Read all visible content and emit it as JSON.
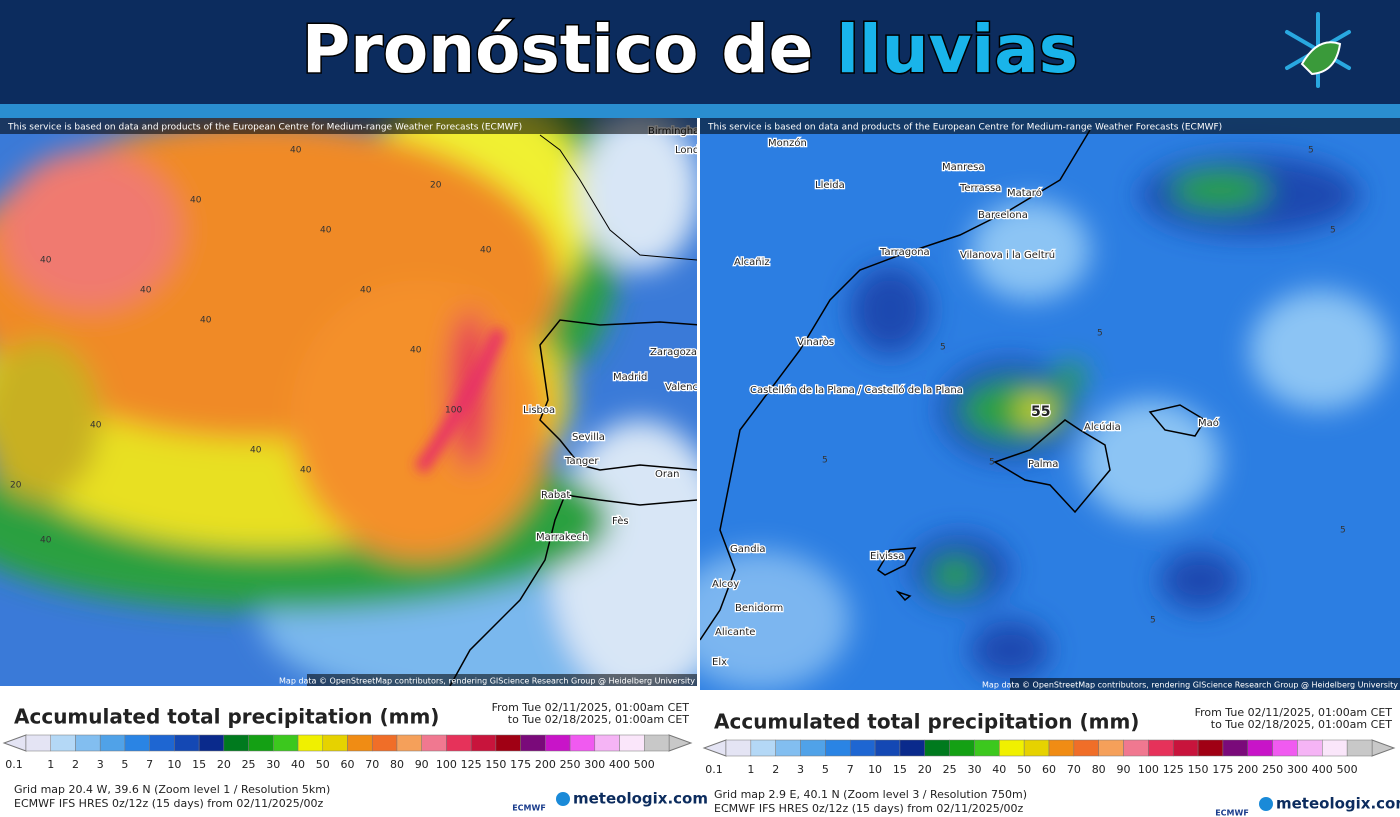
{
  "header": {
    "title_part1": "Pronóstico de",
    "title_part2": "lluvias"
  },
  "legend": {
    "title": "Accumulated total precipitation (mm)",
    "date_from": "From Tue 02/11/2025, 01:00am CET",
    "date_to": "to Tue 02/18/2025, 01:00am CET",
    "model_info": "ECMWF IFS HRES 0z/12z (15 days) from 02/11/2025/00z",
    "brand_small": "ECMWF",
    "brand": "meteologix.com",
    "scale": [
      "0.1",
      "1",
      "2",
      "3",
      "5",
      "7",
      "10",
      "15",
      "20",
      "25",
      "30",
      "40",
      "50",
      "60",
      "70",
      "80",
      "90",
      "100",
      "125",
      "150",
      "175",
      "200",
      "250",
      "300",
      "400",
      "500"
    ],
    "scale_colors": [
      "#e4e4f4",
      "#b4d8f6",
      "#82bef0",
      "#50a2e8",
      "#2a84e4",
      "#1e66d2",
      "#1448b4",
      "#0a2a8c",
      "#007a1e",
      "#14a014",
      "#3cc81e",
      "#f0f000",
      "#e6d200",
      "#f08c14",
      "#f06e28",
      "#f5a05a",
      "#f07890",
      "#e6325a",
      "#c8143c",
      "#a00014",
      "#7a0a7a",
      "#c814c8",
      "#f05af0",
      "#f5b4f5",
      "#fae6fa",
      "#c8c8c8"
    ]
  },
  "panels": [
    {
      "attribution_top": "This service is based on data and products of the European Centre for Medium-range Weather Forecasts (ECMWF)",
      "attribution_bottom": "Map data © OpenStreetMap contributors, rendering GIScience Research Group @ Heidelberg University",
      "grid_info": "Grid map 20.4 W, 39.6 N (Zoom level 1 / Resolution 5km)",
      "places": [
        "Birmingham",
        "Lond",
        "Zaragoza",
        "Madrid",
        "Valenc",
        "Lisboa",
        "Sevilla",
        "Tanger",
        "Rabat",
        "Oran",
        "Fès",
        "Marrakech"
      ],
      "contour_labels": [
        "40",
        "40",
        "40",
        "40",
        "20",
        "40",
        "40",
        "40",
        "100",
        "40",
        "40",
        "40",
        "20",
        "40",
        "40",
        "40"
      ]
    },
    {
      "attribution_top": "This service is based on data and products of the European Centre for Medium-range Weather Forecasts (ECMWF)",
      "attribution_bottom": "Map data © OpenStreetMap contributors, rendering GIScience Research Group @ Heidelberg University",
      "grid_info": "Grid map 2.9 E, 40.1 N (Zoom level 3 / Resolution 750m)",
      "places": [
        "Monzón",
        "Lleida",
        "Manresa",
        "Terrassa",
        "Mataró",
        "Barcelona",
        "Tarragona",
        "Vilanova i la Geltrú",
        "Alcañiz",
        "Vinaròs",
        "Castellón de la Plana / Castelló de la Plana",
        "Palma",
        "Alcúdia",
        "Maó",
        "Eivissa",
        "Gandia",
        "Alcoy",
        "Benidorm",
        "Alicante",
        "Elx",
        "55"
      ],
      "contour_labels": [
        "5",
        "5",
        "5",
        "5",
        "5",
        "5",
        "5",
        "5"
      ]
    }
  ]
}
